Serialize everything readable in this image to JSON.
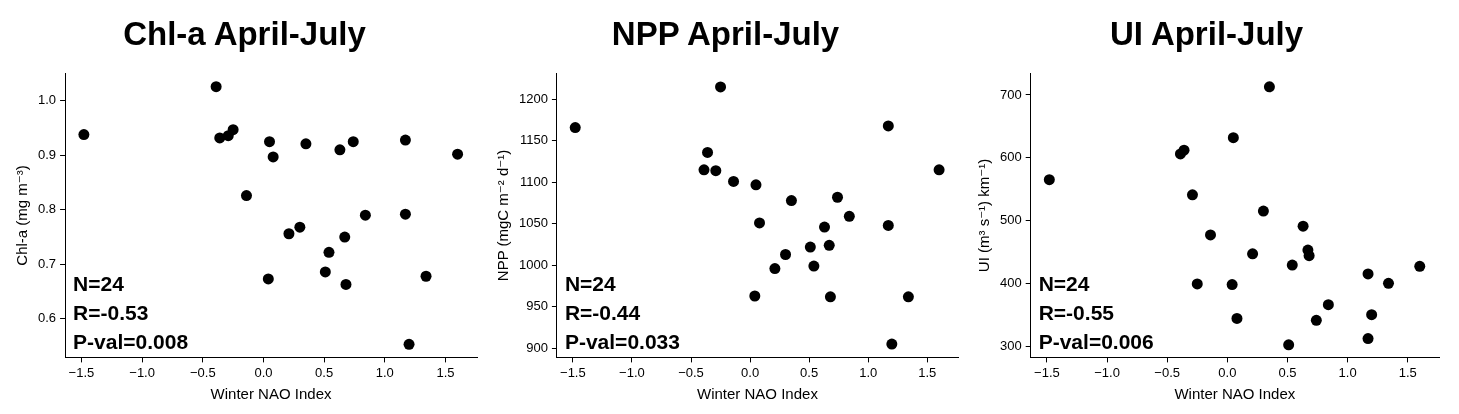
{
  "chart_data": [
    {
      "type": "scatter",
      "title": "Chl-a April-July",
      "xlabel": "Winter NAO Index",
      "ylabel": "Chl-a (mg m⁻³)",
      "annotations": [
        "N=24",
        "R=-0.53",
        "P-val=0.008"
      ],
      "marker": "circle",
      "grid": false,
      "color": "#000000",
      "x": [
        -1.48,
        -0.39,
        -0.36,
        -0.29,
        -0.25,
        -0.14,
        0.05,
        0.08,
        0.04,
        0.21,
        0.3,
        0.35,
        0.51,
        0.54,
        0.63,
        0.67,
        0.68,
        0.74,
        0.84,
        1.17,
        1.17,
        1.2,
        1.34,
        1.6
      ],
      "values": [
        0.938,
        1.026,
        0.932,
        0.936,
        0.947,
        0.826,
        0.925,
        0.897,
        0.673,
        0.756,
        0.768,
        0.921,
        0.686,
        0.722,
        0.91,
        0.75,
        0.663,
        0.925,
        0.79,
        0.928,
        0.792,
        0.553,
        0.678,
        0.902
      ],
      "xlim": [
        -1.635,
        1.76
      ],
      "ylim": [
        0.529,
        1.05
      ],
      "xticks": [
        {
          "value": -1.5,
          "label": "−1.5"
        },
        {
          "value": -1,
          "label": "−1.0"
        },
        {
          "value": -0.5,
          "label": "−0.5"
        },
        {
          "value": 0,
          "label": "0.0"
        },
        {
          "value": 0.5,
          "label": "0.5"
        },
        {
          "value": 1,
          "label": "1.0"
        },
        {
          "value": 1.5,
          "label": "1.5"
        }
      ],
      "yticks": [
        {
          "value": 0.6,
          "label": "0.6"
        },
        {
          "value": 0.7,
          "label": "0.7"
        },
        {
          "value": 0.8,
          "label": "0.8"
        },
        {
          "value": 0.9,
          "label": "0.9"
        },
        {
          "value": 1,
          "label": "1.0"
        }
      ]
    },
    {
      "type": "scatter",
      "title": "NPP April-July",
      "xlabel": "Winter NAO Index",
      "ylabel": "NPP (mgC m⁻² d⁻¹)",
      "annotations": [
        "N=24",
        "R=-0.44",
        "P-val=0.033"
      ],
      "marker": "circle",
      "grid": false,
      "color": "#000000",
      "x": [
        -1.48,
        -0.25,
        -0.36,
        -0.39,
        -0.29,
        -0.14,
        0.05,
        0.08,
        0.04,
        0.21,
        0.3,
        0.35,
        0.51,
        0.54,
        0.63,
        0.67,
        0.68,
        0.74,
        0.84,
        1.17,
        1.17,
        1.2,
        1.34,
        1.6
      ],
      "values": [
        1166,
        1215,
        1136,
        1115,
        1114,
        1101,
        1097,
        1051,
        963,
        996,
        1013,
        1078,
        1022,
        999,
        1046,
        1024,
        962,
        1082,
        1059,
        1168,
        1048,
        905,
        962,
        1115
      ],
      "xlim": [
        -1.635,
        1.76
      ],
      "ylim": [
        889,
        1231
      ],
      "xticks": [
        {
          "value": -1.5,
          "label": "−1.5"
        },
        {
          "value": -1,
          "label": "−1.0"
        },
        {
          "value": -0.5,
          "label": "−0.5"
        },
        {
          "value": 0,
          "label": "0.0"
        },
        {
          "value": 0.5,
          "label": "0.5"
        },
        {
          "value": 1,
          "label": "1.0"
        },
        {
          "value": 1.5,
          "label": "1.5"
        }
      ],
      "yticks": [
        900,
        950,
        1000,
        1050,
        1100,
        1150,
        1200
      ]
    },
    {
      "type": "scatter",
      "title": "UI April-July",
      "xlabel": "Winter NAO Index",
      "ylabel": "UI (m³ s⁻¹) km⁻¹)",
      "annotations": [
        "N=24",
        "R=-0.55",
        "P-val=0.006"
      ],
      "marker": "circle",
      "grid": false,
      "color": "#000000",
      "x": [
        -1.48,
        -0.39,
        -0.36,
        -0.29,
        -0.25,
        -0.14,
        0.05,
        0.04,
        0.08,
        0.21,
        0.3,
        0.35,
        0.51,
        0.54,
        0.63,
        0.67,
        0.68,
        0.74,
        0.84,
        1.17,
        1.17,
        1.2,
        1.34,
        1.6
      ],
      "values": [
        565,
        606,
        612,
        541,
        399,
        477,
        632,
        398,
        344,
        447,
        515,
        713,
        302,
        429,
        491,
        453,
        444,
        341,
        366,
        415,
        312,
        350,
        400,
        427
      ],
      "xlim": [
        -1.635,
        1.76
      ],
      "ylim": [
        282,
        734
      ],
      "xticks": [
        {
          "value": -1.5,
          "label": "−1.5"
        },
        {
          "value": -1,
          "label": "−1.0"
        },
        {
          "value": -0.5,
          "label": "−0.5"
        },
        {
          "value": 0,
          "label": "0.0"
        },
        {
          "value": 0.5,
          "label": "0.5"
        },
        {
          "value": 1,
          "label": "1.0"
        },
        {
          "value": 1.5,
          "label": "1.5"
        }
      ],
      "yticks": [
        300,
        400,
        500,
        600,
        700
      ]
    }
  ]
}
